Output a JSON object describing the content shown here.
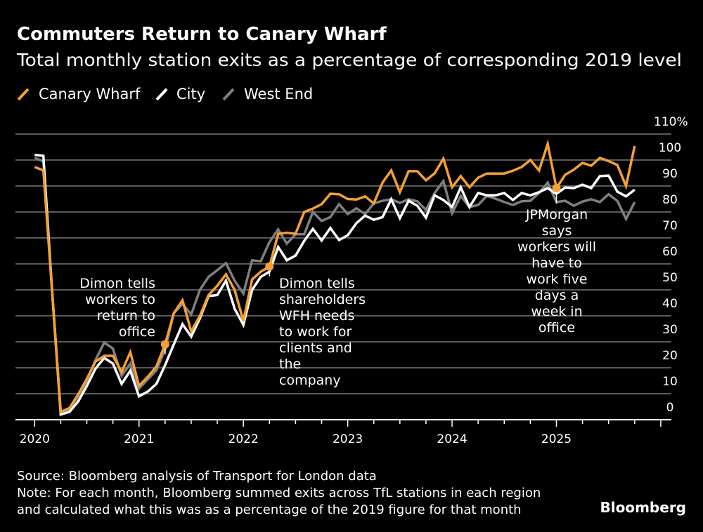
{
  "title": "Commuters Return to Canary Wharf",
  "subtitle": "Total monthly station exits as a percentage of corresponding 2019 level",
  "source": "Source: Bloomberg analysis of Transport for London data",
  "note_lines": [
    "Note: For each month, Bloomberg summed exits across TfL stations in each region",
    "and calculated what this was as a percentage of the 2019 figure for that month"
  ],
  "logo": "Bloomberg",
  "chart_data": {
    "type": "line",
    "title": "Commuters Return to Canary Wharf",
    "xlabel": "",
    "ylabel": "",
    "ylim": [
      0,
      110
    ],
    "y_ticks": [
      0,
      10,
      20,
      30,
      40,
      50,
      60,
      70,
      80,
      90,
      100,
      110
    ],
    "y_tick_labels": [
      "0",
      "10",
      "20",
      "30",
      "40",
      "50",
      "60",
      "70",
      "80",
      "90",
      "100",
      "110%"
    ],
    "x_tick_labels": [
      "2020",
      "2021",
      "2022",
      "2023",
      "2024",
      "2025"
    ],
    "grid": true,
    "legend_position": "top-left",
    "x": [
      "2020-01",
      "2020-02",
      "2020-03",
      "2020-04",
      "2020-05",
      "2020-06",
      "2020-07",
      "2020-08",
      "2020-09",
      "2020-10",
      "2020-11",
      "2020-12",
      "2021-01",
      "2021-02",
      "2021-03",
      "2021-04",
      "2021-05",
      "2021-06",
      "2021-07",
      "2021-08",
      "2021-09",
      "2021-10",
      "2021-11",
      "2021-12",
      "2022-01",
      "2022-02",
      "2022-03",
      "2022-04",
      "2022-05",
      "2022-06",
      "2022-07",
      "2022-08",
      "2022-09",
      "2022-10",
      "2022-11",
      "2022-12",
      "2023-01",
      "2023-02",
      "2023-03",
      "2023-04",
      "2023-05",
      "2023-06",
      "2023-07",
      "2023-08",
      "2023-09",
      "2023-10",
      "2023-11",
      "2023-12",
      "2024-01",
      "2024-02",
      "2024-03",
      "2024-04",
      "2024-05",
      "2024-06",
      "2024-07",
      "2024-08",
      "2024-09",
      "2024-10",
      "2024-11",
      "2024-12",
      "2025-01",
      "2025-02",
      "2025-03",
      "2025-04",
      "2025-05",
      "2025-06",
      "2025-07",
      "2025-08",
      "2025-09",
      "2025-10"
    ],
    "series": [
      {
        "name": "Canary Wharf",
        "color": "#f5a033",
        "values": [
          97.3,
          96,
          50,
          3,
          4.5,
          9.7,
          15.7,
          22.4,
          24.6,
          24.6,
          18.4,
          26,
          13,
          16.5,
          20.5,
          29,
          41,
          46,
          34,
          40,
          48,
          51.6,
          56,
          50,
          38,
          54,
          57,
          59,
          71.6,
          72,
          71.6,
          80,
          81.3,
          83,
          87,
          86.8,
          85,
          84.8,
          86,
          83.3,
          91.3,
          96,
          87.6,
          95.7,
          95.7,
          92.2,
          94.9,
          100.5,
          89.5,
          93.8,
          89.5,
          93.2,
          94.8,
          94.8,
          94.8,
          95.9,
          97.3,
          100,
          96,
          106.2,
          89.2,
          94.3,
          96.3,
          98.9,
          97.8,
          100.8,
          99.6,
          98.1,
          90,
          105.4
        ]
      },
      {
        "name": "City",
        "color": "#ffffff",
        "values": [
          102,
          101.6,
          50,
          2,
          3,
          7,
          13,
          19.7,
          23.8,
          21.6,
          13.8,
          18.9,
          9,
          10.8,
          13.8,
          21,
          29,
          36.8,
          32,
          39,
          47.6,
          48,
          53.5,
          42.7,
          36.5,
          50,
          55,
          57,
          66.5,
          61.4,
          63.2,
          68.9,
          73.5,
          69,
          73.8,
          69.2,
          71,
          75.7,
          78.6,
          77,
          78,
          84.9,
          77.6,
          84.3,
          82.4,
          77.8,
          86.4,
          84.6,
          81.9,
          89.5,
          81.9,
          87.3,
          86.4,
          86.4,
          87.3,
          84.6,
          87.3,
          86.4,
          87.6,
          89.2,
          87,
          89.4,
          89.2,
          90.5,
          89.2,
          93.8,
          94,
          87.8,
          86,
          88.6
        ]
      },
      {
        "name": "West End",
        "color": "#7f7f7f",
        "values": [
          100.8,
          99.5,
          50,
          3,
          4,
          9,
          15,
          23,
          29.7,
          27.4,
          17,
          21.6,
          12,
          15.5,
          19,
          27,
          41,
          44.6,
          40.5,
          50,
          55,
          57.6,
          60.3,
          53.5,
          48.6,
          61.4,
          61,
          68.4,
          73.3,
          67.8,
          71.4,
          71.4,
          80,
          76.5,
          78,
          83,
          79.2,
          81.4,
          79.2,
          83.3,
          84.3,
          84.9,
          83.5,
          84.9,
          84.1,
          80.8,
          87.3,
          91.9,
          79.5,
          86.2,
          81.9,
          82.7,
          86.2,
          85.1,
          83.8,
          82.7,
          84.1,
          84.3,
          87.3,
          91.3,
          83.8,
          84.3,
          82.4,
          84,
          84.9,
          83.8,
          86.8,
          84.3,
          77.3,
          83.8
        ]
      }
    ],
    "annotations": [
      {
        "date": "2021-04",
        "series": "Canary Wharf",
        "lines": [
          "Dimon tells",
          "workers to",
          "return to",
          "office"
        ]
      },
      {
        "date": "2022-04",
        "series": "Canary Wharf",
        "lines": [
          "Dimon tells",
          "shareholders",
          "WFH needs",
          "to work for",
          "clients and",
          "the",
          "company"
        ]
      },
      {
        "date": "2025-01",
        "series": "Canary Wharf",
        "lines": [
          "JPMorgan",
          "says",
          "workers will",
          "have to",
          "work five",
          "days a",
          "week in",
          "office"
        ]
      }
    ]
  }
}
